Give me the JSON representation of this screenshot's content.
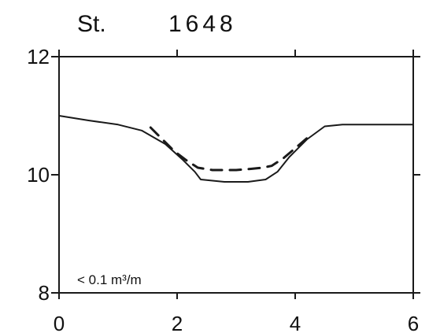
{
  "chart_data": {
    "type": "line",
    "title": "",
    "station_label": "St.",
    "station_number": "1648",
    "xlabel": "",
    "ylabel": "",
    "xlim": [
      0,
      6
    ],
    "ylim": [
      8,
      12
    ],
    "x_ticks": [
      0,
      2,
      4,
      6
    ],
    "x_tick_labels": [
      "0",
      "2",
      "4",
      "6"
    ],
    "y_ticks": [
      8,
      10,
      12
    ],
    "y_tick_labels": [
      "8",
      "10",
      "12"
    ],
    "grid": false,
    "annotation": "< 0.1 m³/m",
    "series": [
      {
        "style": "solid",
        "x": [
          0,
          0.5,
          1,
          1.4,
          1.8,
          2.1,
          2.3,
          2.4,
          2.8,
          3.2,
          3.5,
          3.7,
          3.9,
          4.2,
          4.5,
          4.8,
          5.2,
          5.6,
          6
        ],
        "y": [
          11.0,
          10.92,
          10.85,
          10.75,
          10.52,
          10.25,
          10.05,
          9.92,
          9.88,
          9.88,
          9.92,
          10.05,
          10.3,
          10.6,
          10.82,
          10.85,
          10.85,
          10.85,
          10.85
        ]
      },
      {
        "style": "dashed",
        "x": [
          1.55,
          1.75,
          1.95,
          2.15,
          2.35,
          2.6,
          2.8,
          3.0,
          3.25,
          3.45,
          3.6,
          3.8,
          4.0,
          4.2
        ],
        "y": [
          10.8,
          10.6,
          10.4,
          10.25,
          10.12,
          10.08,
          10.08,
          10.08,
          10.1,
          10.12,
          10.15,
          10.28,
          10.45,
          10.62
        ]
      }
    ]
  }
}
